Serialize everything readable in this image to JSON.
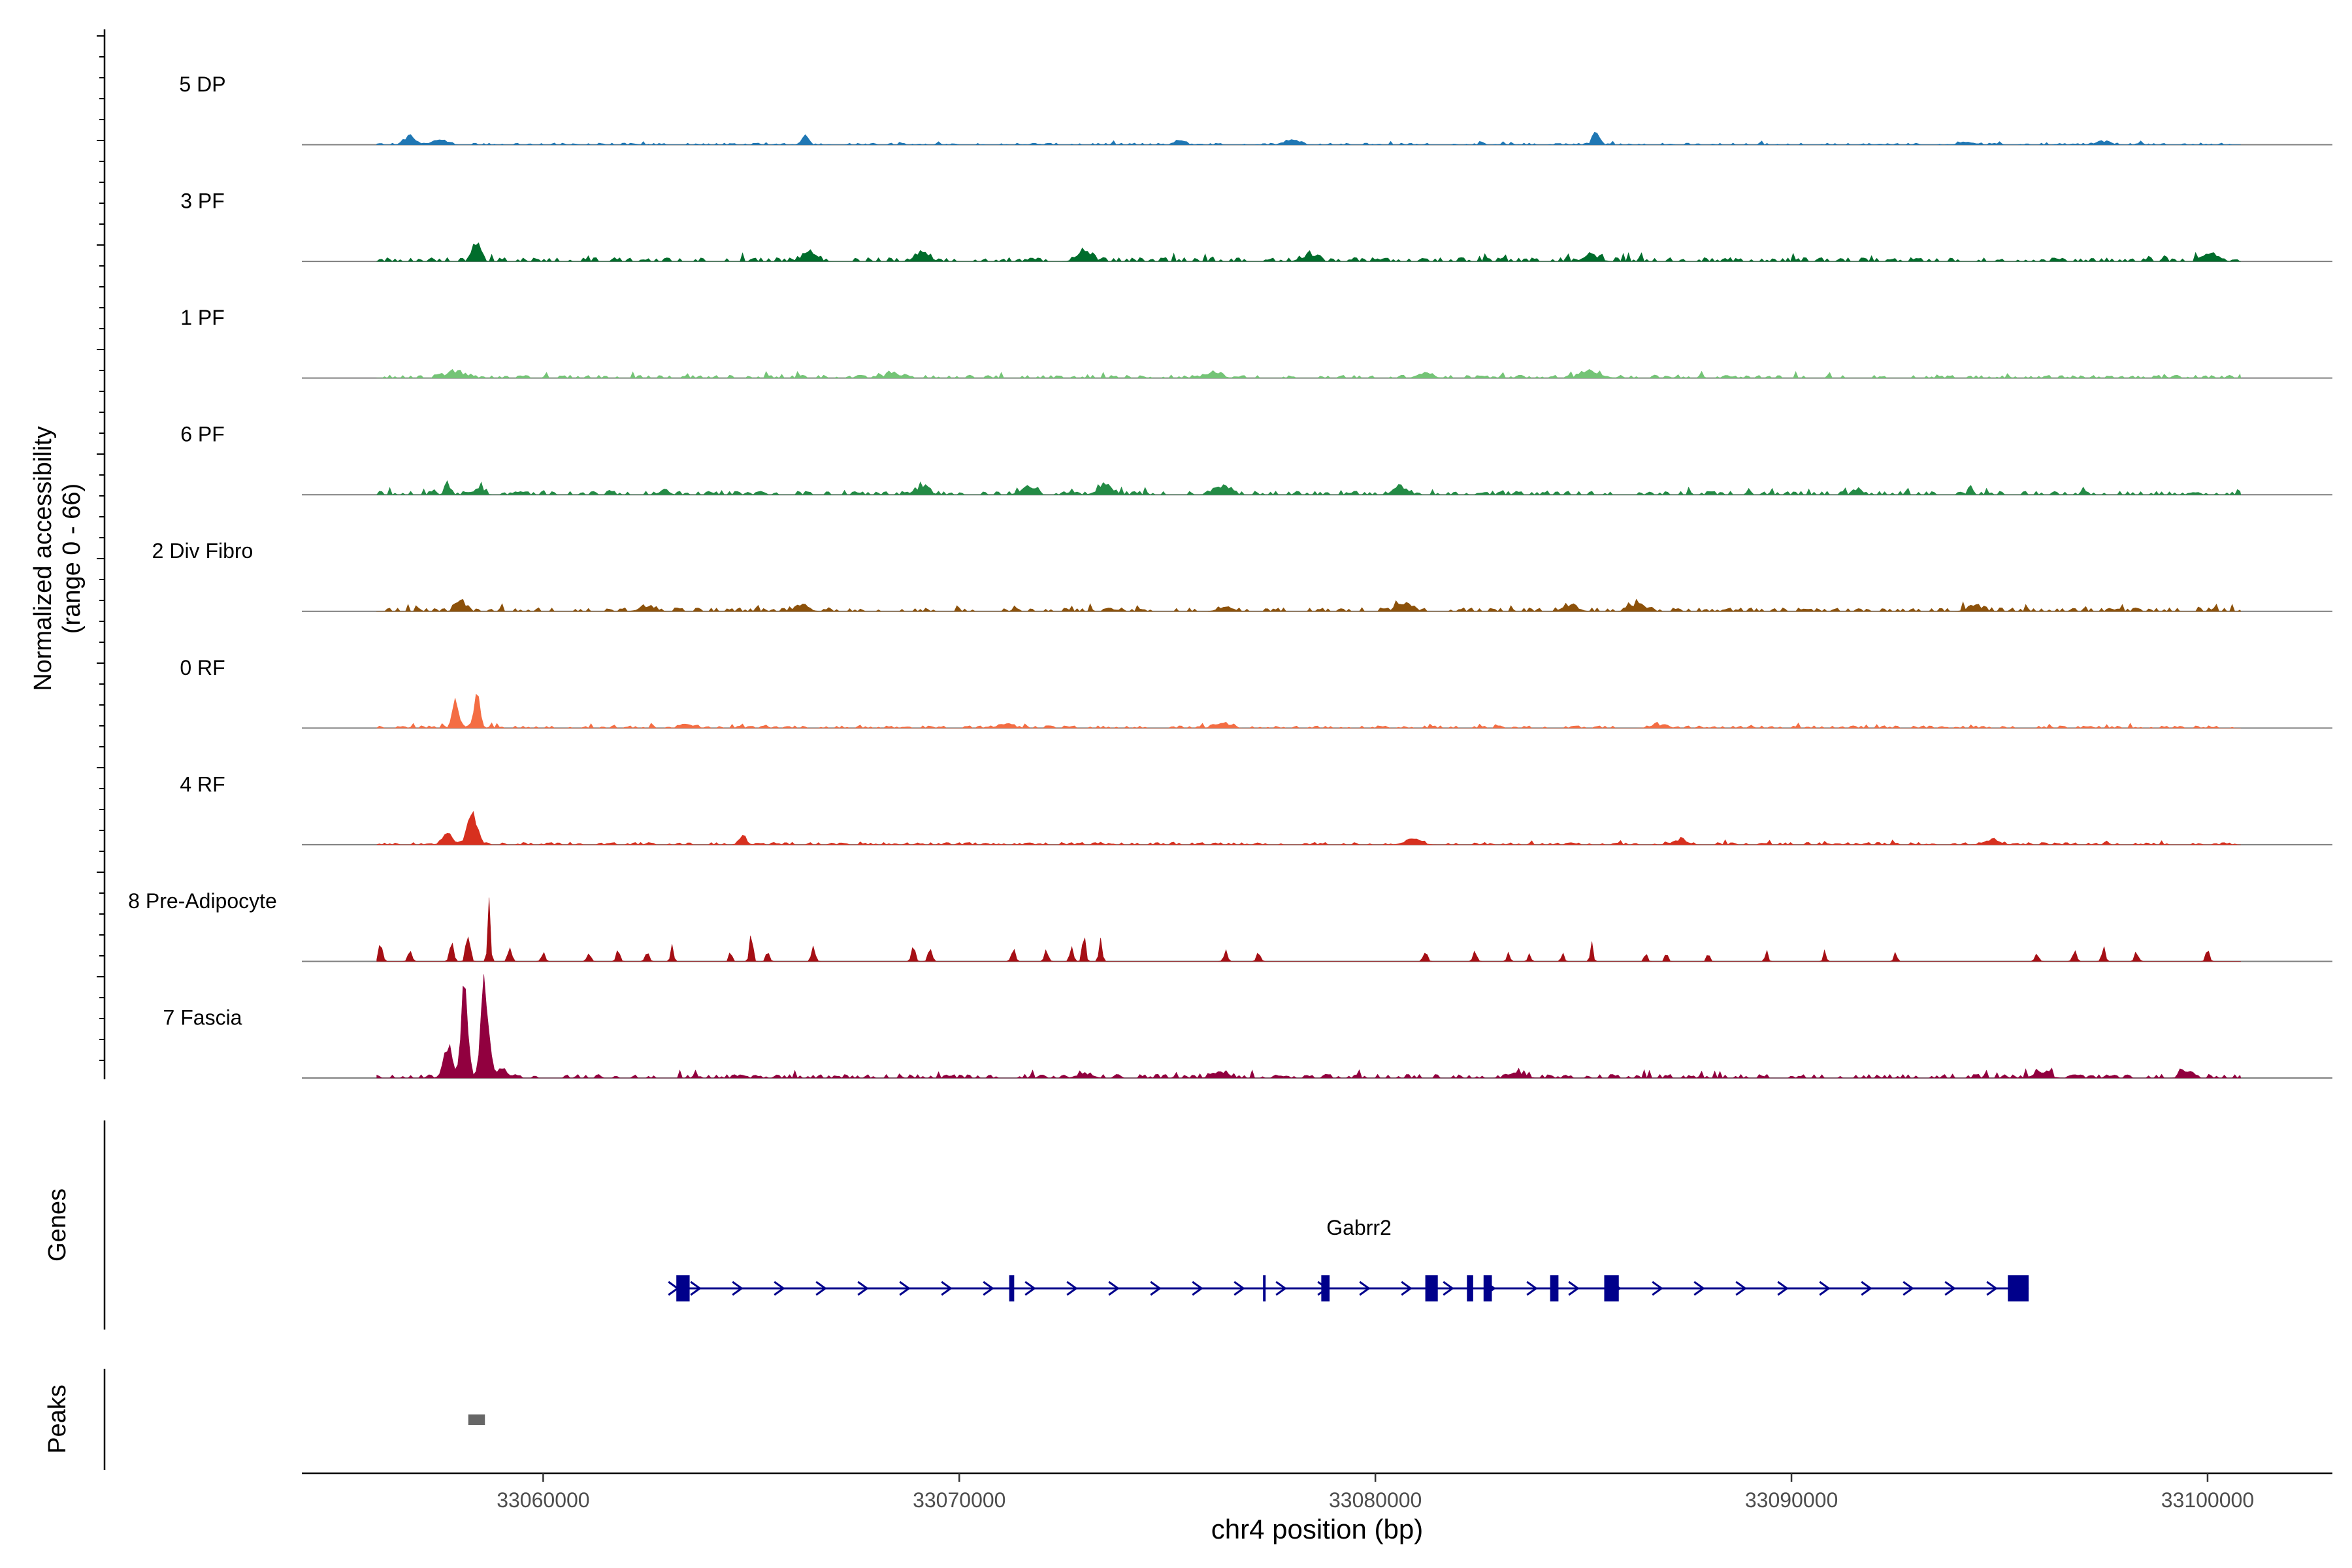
{
  "chart_data": {
    "type": "area",
    "title": "",
    "xlabel": "chr4 position (bp)",
    "xlim": [
      33054200,
      33103000
    ],
    "x_ticks": [
      {
        "value": 33060000,
        "label": "33060000"
      },
      {
        "value": 33070000,
        "label": "33070000"
      },
      {
        "value": 33080000,
        "label": "33080000"
      },
      {
        "value": 33090000,
        "label": "33090000"
      },
      {
        "value": 33100000,
        "label": "33100000"
      }
    ],
    "coverage": {
      "ylabel_line1": "Normalized accessibility",
      "ylabel_line2": "(range 0 - 66)",
      "ylim": [
        0,
        66
      ],
      "tracks": [
        {
          "name": "5 DP",
          "color": "#1f77b4",
          "base": 0.3,
          "noise": 0.8,
          "peaks": [
            [
              33056800,
              5,
              250
            ],
            [
              33057500,
              3,
              300
            ],
            [
              33066300,
              8,
              120
            ],
            [
              33075300,
              3,
              200
            ],
            [
              33078000,
              3,
              300
            ],
            [
              33085300,
              7,
              150
            ],
            [
              33094200,
              2,
              300
            ],
            [
              33097500,
              2,
              300
            ]
          ]
        },
        {
          "name": "3 PF",
          "color": "#006d2c",
          "base": 0.9,
          "noise": 1.6,
          "peaks": [
            [
              33058400,
              13,
              160
            ],
            [
              33066400,
              5,
              300
            ],
            [
              33069100,
              5,
              300
            ],
            [
              33073000,
              6,
              300
            ],
            [
              33078400,
              4,
              300
            ],
            [
              33085200,
              4,
              300
            ],
            [
              33100100,
              4,
              300
            ]
          ]
        },
        {
          "name": "1 PF",
          "color": "#74c476",
          "base": 0.7,
          "noise": 1.2,
          "peaks": [
            [
              33057900,
              4,
              400
            ],
            [
              33068400,
              3,
              300
            ],
            [
              33076100,
              4,
              300
            ],
            [
              33081200,
              3,
              300
            ],
            [
              33085200,
              4,
              400
            ]
          ]
        },
        {
          "name": "6 PF",
          "color": "#238b45",
          "base": 0.9,
          "noise": 1.4,
          "peaks": [
            [
              33057700,
              7,
              120
            ],
            [
              33058500,
              5,
              150
            ],
            [
              33062900,
              3,
              200
            ],
            [
              33069100,
              5,
              300
            ],
            [
              33071600,
              4,
              300
            ],
            [
              33073500,
              6,
              300
            ],
            [
              33076300,
              6,
              300
            ],
            [
              33080600,
              5,
              300
            ],
            [
              33091600,
              4,
              150
            ],
            [
              33094300,
              5,
              100
            ]
          ]
        },
        {
          "name": "2 Div Fibro",
          "color": "#8c510a",
          "base": 0.9,
          "noise": 1.4,
          "peaks": [
            [
              33058000,
              6,
              200
            ],
            [
              33062500,
              3,
              300
            ],
            [
              33066200,
              4,
              300
            ],
            [
              33076400,
              3,
              300
            ],
            [
              33080700,
              5,
              300
            ],
            [
              33084700,
              4,
              300
            ],
            [
              33086300,
              5,
              300
            ],
            [
              33094400,
              3,
              300
            ]
          ]
        },
        {
          "name": "0 RF",
          "color": "#f46d43",
          "base": 0.5,
          "noise": 1.0,
          "peaks": [
            [
              33057900,
              16,
              130
            ],
            [
              33058400,
              23,
              130
            ],
            [
              33063500,
              2,
              300
            ],
            [
              33071100,
              2,
              300
            ],
            [
              33076300,
              3,
              300
            ],
            [
              33086800,
              2,
              300
            ]
          ]
        },
        {
          "name": "4 RF",
          "color": "#d7301f",
          "base": 0.5,
          "noise": 1.0,
          "peaks": [
            [
              33058300,
              19,
              200
            ],
            [
              33057700,
              6,
              200
            ],
            [
              33064800,
              5,
              150
            ],
            [
              33080900,
              4,
              300
            ],
            [
              33087300,
              3,
              300
            ],
            [
              33094800,
              3,
              300
            ]
          ]
        },
        {
          "name": "8 Pre-Adipocyte",
          "color": "#a50f15",
          "base": 0.0,
          "noise": 0.0,
          "peaks": [
            [
              33055600,
              8,
              70
            ],
            [
              33056100,
              12,
              80
            ],
            [
              33056800,
              9,
              80
            ],
            [
              33057800,
              16,
              80
            ],
            [
              33058200,
              22,
              80
            ],
            [
              33058700,
              34,
              60
            ],
            [
              33059200,
              8,
              80
            ],
            [
              33060000,
              6,
              80
            ],
            [
              33061100,
              5,
              80
            ],
            [
              33061800,
              6,
              80
            ],
            [
              33062500,
              6,
              80
            ],
            [
              33063100,
              12,
              60
            ],
            [
              33064500,
              6,
              60
            ],
            [
              33065000,
              16,
              70
            ],
            [
              33065400,
              7,
              70
            ],
            [
              33066500,
              10,
              80
            ],
            [
              33068900,
              8,
              80
            ],
            [
              33069300,
              10,
              80
            ],
            [
              33071300,
              10,
              80
            ],
            [
              33072100,
              7,
              80
            ],
            [
              33072700,
              9,
              80
            ],
            [
              33073000,
              16,
              70
            ],
            [
              33073400,
              12,
              70
            ],
            [
              33076400,
              6,
              80
            ],
            [
              33077200,
              6,
              80
            ],
            [
              33081200,
              7,
              80
            ],
            [
              33082400,
              6,
              80
            ],
            [
              33083200,
              6,
              60
            ],
            [
              33083700,
              6,
              60
            ],
            [
              33084500,
              6,
              60
            ],
            [
              33085200,
              12,
              60
            ],
            [
              33086500,
              6,
              60
            ],
            [
              33087000,
              6,
              60
            ],
            [
              33088000,
              6,
              60
            ],
            [
              33089400,
              6,
              60
            ],
            [
              33090800,
              6,
              60
            ],
            [
              33092500,
              6,
              60
            ],
            [
              33095900,
              5,
              80
            ],
            [
              33096800,
              7,
              80
            ],
            [
              33097500,
              8,
              80
            ],
            [
              33098300,
              6,
              80
            ],
            [
              33100000,
              10,
              70
            ]
          ]
        },
        {
          "name": "7 Fascia",
          "color": "#91003f",
          "base": 0.9,
          "noise": 1.5,
          "peaks": [
            [
              33058100,
              52,
              150
            ],
            [
              33058600,
              58,
              160
            ],
            [
              33057700,
              18,
              180
            ],
            [
              33059000,
              7,
              200
            ],
            [
              33073000,
              3,
              300
            ],
            [
              33076300,
              4,
              300
            ],
            [
              33083400,
              4,
              300
            ],
            [
              33096000,
              4,
              300
            ],
            [
              33099500,
              5,
              200
            ]
          ]
        }
      ]
    },
    "genes": {
      "label": "Genes",
      "color": "#00008b",
      "list": [
        {
          "name": "Gabrr2",
          "strand": "+",
          "start": 33063200,
          "end": 33095700,
          "exons": [
            [
              33063200,
              33063520
            ],
            [
              33071200,
              33071320
            ],
            [
              33077300,
              33077360
            ],
            [
              33078700,
              33078900
            ],
            [
              33081200,
              33081500
            ],
            [
              33082200,
              33082350
            ],
            [
              33082600,
              33082800
            ],
            [
              33084200,
              33084400
            ],
            [
              33085500,
              33085850
            ],
            [
              33095200,
              33095700
            ]
          ]
        }
      ]
    },
    "peaks": {
      "label": "Peaks",
      "color": "#666666",
      "regions": [
        [
          33058200,
          33058600
        ]
      ]
    }
  }
}
